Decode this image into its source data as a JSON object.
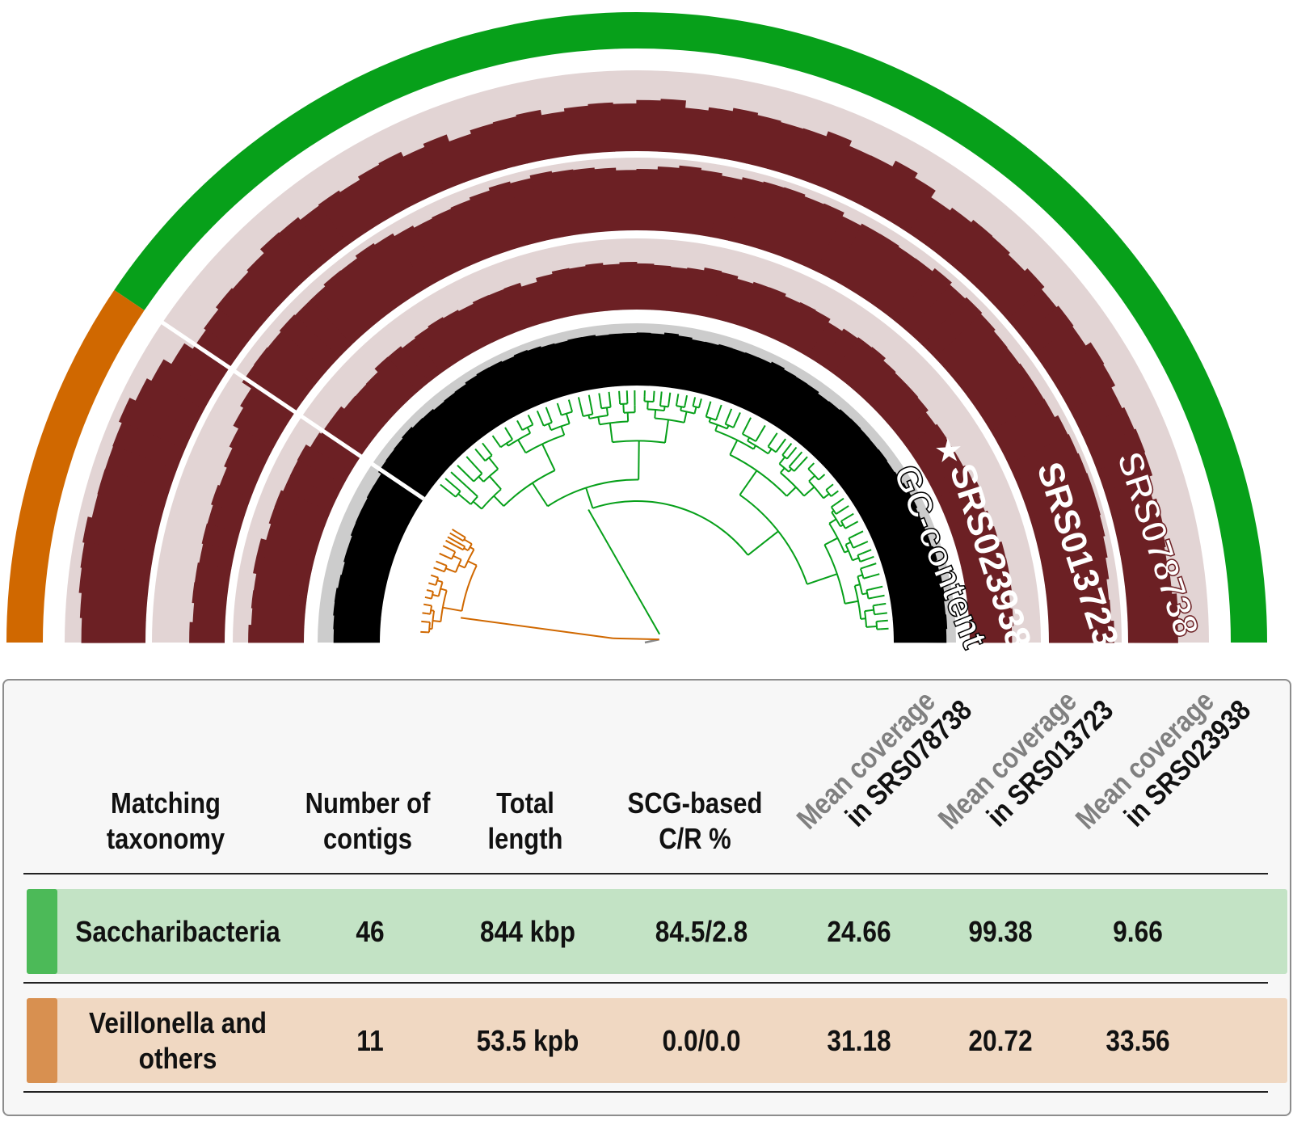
{
  "colors": {
    "saccharibacteria": "#07a01a",
    "veillonella": "#d06800",
    "coverage_dark": "#6c2024",
    "coverage_light": "#e2d4d4",
    "gc_dark": "#000000",
    "gc_light": "#cccccc",
    "row_sacch_bg": "#c3e3c5",
    "row_sacch_swatch": "#4cba58",
    "row_veil_bg": "#f0d8c2",
    "row_veil_swatch": "#d89050"
  },
  "ring_labels": {
    "gc": "GC-content",
    "s1": "SRS023938",
    "s2": "SRS013723",
    "s3": "SRS078738",
    "star": "★"
  },
  "table": {
    "headers": {
      "taxonomy": [
        "Matching",
        "taxonomy"
      ],
      "contigs": [
        "Number of",
        "contigs"
      ],
      "length": [
        "Total",
        "length"
      ],
      "scg": [
        "SCG-based",
        "C/R %"
      ],
      "cov_prefix": "Mean coverage",
      "cov_in": "in",
      "cov1": "SRS078738",
      "cov2": "SRS013723",
      "cov3": "SRS023938"
    },
    "rows": [
      {
        "taxonomy": "Saccharibacteria",
        "contigs": "46",
        "length": "844 kbp",
        "scg": "84.5/2.8",
        "cov1": "24.66",
        "cov2": "99.38",
        "cov3": "9.66"
      },
      {
        "taxonomy_line1": "Veillonella and",
        "taxonomy_line2": "others",
        "contigs": "11",
        "length": "53.5 kpb",
        "scg": "0.0/0.0",
        "cov1": "31.18",
        "cov2": "20.72",
        "cov3": "33.56"
      }
    ]
  }
}
